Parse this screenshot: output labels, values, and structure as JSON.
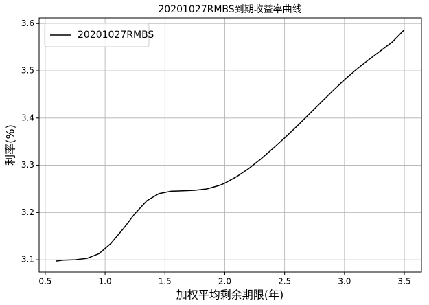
{
  "chart_data": {
    "type": "line",
    "title": "20201027RMBS到期收益率曲线",
    "x_label": "加权平均剩余期限(年)",
    "y_label": "利率(%)",
    "x": [
      0.59,
      0.65,
      0.75,
      0.85,
      0.95,
      1.05,
      1.15,
      1.25,
      1.35,
      1.45,
      1.55,
      1.65,
      1.75,
      1.85,
      1.95,
      2.0,
      2.1,
      2.2,
      2.3,
      2.4,
      2.5,
      2.6,
      2.7,
      2.8,
      2.9,
      3.0,
      3.1,
      3.2,
      3.3,
      3.4,
      3.5
    ],
    "series": [
      {
        "name": "20201027RMBS",
        "color": "#000000",
        "values": [
          3.097,
          3.099,
          3.1,
          3.103,
          3.113,
          3.135,
          3.165,
          3.198,
          3.225,
          3.24,
          3.245,
          3.246,
          3.247,
          3.25,
          3.257,
          3.262,
          3.276,
          3.293,
          3.313,
          3.335,
          3.358,
          3.382,
          3.407,
          3.432,
          3.457,
          3.481,
          3.503,
          3.523,
          3.542,
          3.561,
          3.587
        ]
      }
    ],
    "xlim": [
      0.449,
      3.643
    ],
    "ylim": [
      3.074,
      3.612
    ],
    "xticks": [
      0.5,
      {
        "value": 1.0,
        "label": "1.0"
      },
      1.5,
      {
        "value": 2.0,
        "label": "2.0"
      },
      2.5,
      {
        "value": 3.0,
        "label": "3.0"
      },
      3.5
    ],
    "yticks": [
      3.1,
      3.2,
      3.3,
      3.4,
      3.5,
      3.6
    ],
    "grid": true,
    "legend": "upper left"
  }
}
